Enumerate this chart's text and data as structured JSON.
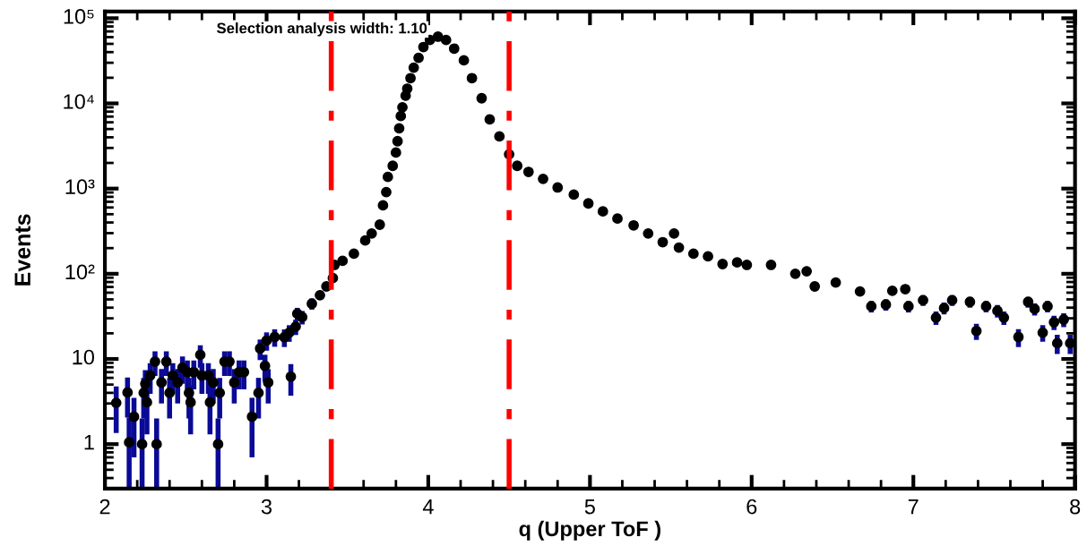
{
  "chart_data": {
    "type": "scatter",
    "xlabel": "q (Upper ToF )",
    "ylabel": "Events",
    "annotations": [
      "Selection analysis width: 1.10"
    ],
    "log": "y",
    "marker": "circle",
    "grid": false,
    "legend": false,
    "xlim": [
      2,
      8
    ],
    "xticks": [
      2,
      3,
      4,
      5,
      6,
      7,
      8
    ],
    "ylim": [
      0.3,
      120000
    ],
    "yticks": [
      1,
      10,
      {
        "value": 100,
        "label": "10²"
      },
      {
        "value": 1000,
        "label": "10³"
      },
      {
        "value": 10000,
        "label": "10⁴"
      },
      {
        "value": 100000,
        "label": "10⁵"
      }
    ],
    "ref_lines": [
      {
        "axis": "x",
        "value": 3.4,
        "color": "#ff0000",
        "line_style": "dashed"
      },
      {
        "axis": "x",
        "value": 4.5,
        "color": "#ff0000",
        "line_style": "dashed"
      }
    ],
    "series": [
      {
        "color": "#000000",
        "x": [
          2.07,
          2.14,
          2.15,
          2.18,
          2.23,
          2.24,
          2.25,
          2.26,
          2.28,
          2.31,
          2.32,
          2.35,
          2.38,
          2.4,
          2.42,
          2.45,
          2.48,
          2.51,
          2.52,
          2.53,
          2.55,
          2.59,
          2.6,
          2.64,
          2.65,
          2.67,
          2.7,
          2.71,
          2.74,
          2.77,
          2.8,
          2.83,
          2.86,
          2.91,
          2.95,
          2.96,
          2.99,
          3.0,
          3.01,
          3.05,
          3.11,
          3.14,
          3.15,
          3.18,
          3.19,
          3.22,
          3.28,
          3.33,
          3.37,
          3.41,
          3.42,
          3.47,
          3.54,
          3.61,
          3.65,
          3.7,
          3.72,
          3.74,
          3.75,
          3.78,
          3.8,
          3.81,
          3.82,
          3.83,
          3.84,
          3.86,
          3.87,
          3.89,
          3.91,
          3.94,
          3.97,
          4.01,
          4.06,
          4.11,
          4.16,
          4.22,
          4.27,
          4.33,
          4.38,
          4.44,
          4.5,
          4.55,
          4.62,
          4.71,
          4.8,
          4.9,
          4.99,
          5.08,
          5.17,
          5.27,
          5.36,
          5.45,
          5.52,
          5.55,
          5.64,
          5.73,
          5.82,
          5.91,
          5.97,
          6.12,
          6.27,
          6.34,
          6.39,
          6.52,
          6.67,
          6.74,
          6.83,
          6.87,
          6.95,
          6.97,
          7.06,
          7.14,
          7.19,
          7.24,
          7.35,
          7.39,
          7.45,
          7.52,
          7.56,
          7.65,
          7.71,
          7.75,
          7.8,
          7.83,
          7.87,
          7.89,
          7.93,
          7.97
        ],
        "values": [
          3.05,
          4.05,
          1.05,
          2.1,
          1,
          4,
          5.1,
          3.1,
          6.4,
          9.3,
          1,
          5.3,
          9.3,
          4,
          6.4,
          5.3,
          7.9,
          7,
          4,
          3.1,
          7,
          11.2,
          6.4,
          6.4,
          3.1,
          5.3,
          1,
          4,
          9.3,
          9.3,
          5.3,
          7,
          7,
          2.1,
          4,
          13.3,
          8.3,
          16.5,
          5.3,
          18.1,
          18,
          20.4,
          6.2,
          24,
          34,
          31,
          44.6,
          56,
          71,
          89,
          127,
          142,
          172,
          246,
          297,
          377,
          636,
          910,
          1370,
          1850,
          2650,
          3600,
          5100,
          7100,
          9000,
          12300,
          14900,
          19800,
          26300,
          34300,
          45900,
          55500,
          60700,
          55500,
          44000,
          32000,
          19800,
          11500,
          6500,
          4100,
          2530,
          1850,
          1570,
          1300,
          1030,
          850,
          670,
          540,
          445,
          370,
          297,
          235,
          297,
          203,
          172,
          160,
          130,
          136,
          127,
          127,
          100,
          107,
          71,
          79,
          62,
          41.5,
          43.5,
          63,
          66,
          41.5,
          49,
          30.6,
          39.6,
          49,
          46.8,
          21.3,
          41.5,
          36.8,
          30.6,
          18.1,
          46.8,
          38.6,
          20.4,
          41.5,
          27,
          15.3,
          29,
          15.3
        ],
        "errors": [
          1.7,
          2,
          [
            0.3,
            2.05
          ],
          1.4,
          [
            0.3,
            2
          ],
          2,
          2.3,
          1.8,
          2.5,
          3,
          [
            0.3,
            2
          ],
          2.3,
          3,
          2,
          2.5,
          2.3,
          2.8,
          2.6,
          2,
          1.8,
          2.6,
          3.3,
          2.5,
          2.5,
          1.8,
          2.3,
          [
            0.3,
            2
          ],
          2,
          3,
          3,
          2.3,
          2.6,
          2.6,
          1.4,
          2,
          3.6,
          2.9,
          4,
          2.3,
          4.2,
          4.2,
          4.5,
          2.5,
          4.9,
          5.8,
          5.6,
          6.7,
          null,
          null,
          null,
          null,
          null,
          null,
          null,
          null,
          null,
          null,
          null,
          null,
          null,
          null,
          null,
          null,
          null,
          null,
          null,
          null,
          null,
          null,
          null,
          null,
          null,
          null,
          null,
          null,
          null,
          null,
          null,
          null,
          null,
          null,
          null,
          null,
          null,
          null,
          null,
          null,
          null,
          null,
          null,
          null,
          null,
          null,
          null,
          null,
          null,
          null,
          null,
          null,
          null,
          null,
          null,
          null,
          null,
          null,
          6.4,
          6.6,
          null,
          null,
          6.4,
          7,
          5.5,
          6.3,
          7,
          6.8,
          4.6,
          6.4,
          6.1,
          5.5,
          4.3,
          6.8,
          6.2,
          4.5,
          6.4,
          5.2,
          3.9,
          5.4,
          3.9
        ]
      }
    ]
  }
}
